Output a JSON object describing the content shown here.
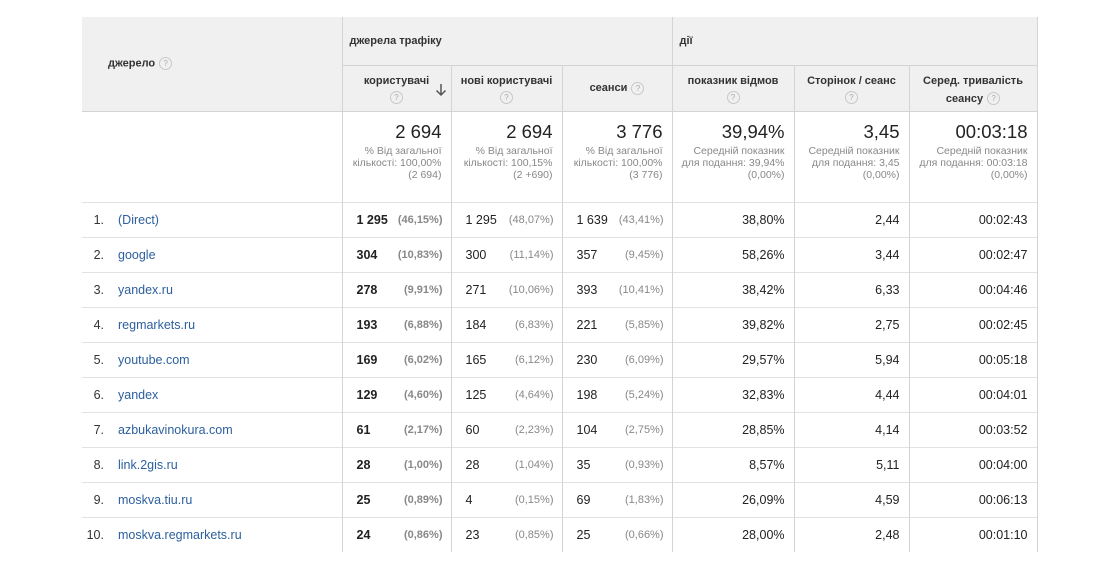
{
  "header": {
    "source_label": "джерело",
    "group_traffic": "джерела трафіку",
    "group_actions": "дії",
    "columns": {
      "users": "користувачі",
      "new_users": "нові користувачі",
      "sessions": "сеанси",
      "bounce_rate": "показник відмов",
      "pages_per_session": "Сторінок / сеанс",
      "avg_duration": "Серед. тривалість сеансу"
    },
    "help_glyph": "?"
  },
  "totals": {
    "users": {
      "value": "2 694",
      "sub": "% Від загальної кількості: 100,00% (2 694)"
    },
    "new_users": {
      "value": "2 694",
      "sub": "% Від загальної кількості: 100,15% (2 +690)"
    },
    "sessions": {
      "value": "3 776",
      "sub": "% Від загальної кількості: 100,00% (3 776)"
    },
    "bounce_rate": {
      "value": "39,94%",
      "sub": "Середній показник для подання: 39,94% (0,00%)"
    },
    "pages_per_session": {
      "value": "3,45",
      "sub": "Середній показник для подання: 3,45 (0,00%)"
    },
    "avg_duration": {
      "value": "00:03:18",
      "sub": "Середній показник для подання: 00:03:18 (0,00%)"
    }
  },
  "rows": [
    {
      "idx": "1.",
      "source": "(Direct)",
      "users": "1 295",
      "users_pct": "(46,15%)",
      "new_users": "1 295",
      "new_users_pct": "(48,07%)",
      "sessions": "1 639",
      "sessions_pct": "(43,41%)",
      "bounce": "38,80%",
      "pages": "2,44",
      "duration": "00:02:43"
    },
    {
      "idx": "2.",
      "source": "google",
      "users": "304",
      "users_pct": "(10,83%)",
      "new_users": "300",
      "new_users_pct": "(11,14%)",
      "sessions": "357",
      "sessions_pct": "(9,45%)",
      "bounce": "58,26%",
      "pages": "3,44",
      "duration": "00:02:47"
    },
    {
      "idx": "3.",
      "source": "yandex.ru",
      "users": "278",
      "users_pct": "(9,91%)",
      "new_users": "271",
      "new_users_pct": "(10,06%)",
      "sessions": "393",
      "sessions_pct": "(10,41%)",
      "bounce": "38,42%",
      "pages": "6,33",
      "duration": "00:04:46"
    },
    {
      "idx": "4.",
      "source": "regmarkets.ru",
      "users": "193",
      "users_pct": "(6,88%)",
      "new_users": "184",
      "new_users_pct": "(6,83%)",
      "sessions": "221",
      "sessions_pct": "(5,85%)",
      "bounce": "39,82%",
      "pages": "2,75",
      "duration": "00:02:45"
    },
    {
      "idx": "5.",
      "source": "youtube.com",
      "users": "169",
      "users_pct": "(6,02%)",
      "new_users": "165",
      "new_users_pct": "(6,12%)",
      "sessions": "230",
      "sessions_pct": "(6,09%)",
      "bounce": "29,57%",
      "pages": "5,94",
      "duration": "00:05:18"
    },
    {
      "idx": "6.",
      "source": "yandex",
      "users": "129",
      "users_pct": "(4,60%)",
      "new_users": "125",
      "new_users_pct": "(4,64%)",
      "sessions": "198",
      "sessions_pct": "(5,24%)",
      "bounce": "32,83%",
      "pages": "4,44",
      "duration": "00:04:01"
    },
    {
      "idx": "7.",
      "source": "azbukavinokura.com",
      "users": "61",
      "users_pct": "(2,17%)",
      "new_users": "60",
      "new_users_pct": "(2,23%)",
      "sessions": "104",
      "sessions_pct": "(2,75%)",
      "bounce": "28,85%",
      "pages": "4,14",
      "duration": "00:03:52"
    },
    {
      "idx": "8.",
      "source": "link.2gis.ru",
      "users": "28",
      "users_pct": "(1,00%)",
      "new_users": "28",
      "new_users_pct": "(1,04%)",
      "sessions": "35",
      "sessions_pct": "(0,93%)",
      "bounce": "8,57%",
      "pages": "5,11",
      "duration": "00:04:00"
    },
    {
      "idx": "9.",
      "source": "moskva.tiu.ru",
      "users": "25",
      "users_pct": "(0,89%)",
      "new_users": "4",
      "new_users_pct": "(0,15%)",
      "sessions": "69",
      "sessions_pct": "(1,83%)",
      "bounce": "26,09%",
      "pages": "4,59",
      "duration": "00:06:13"
    },
    {
      "idx": "10.",
      "source": "moskva.regmarkets.ru",
      "users": "24",
      "users_pct": "(0,86%)",
      "new_users": "23",
      "new_users_pct": "(0,85%)",
      "sessions": "25",
      "sessions_pct": "(0,66%)",
      "bounce": "28,00%",
      "pages": "2,48",
      "duration": "00:01:10"
    }
  ],
  "colors": {
    "link": "#2c5f9e",
    "header_bg": "#f0f0f0",
    "border": "#d4d4d4",
    "muted": "#888888"
  },
  "icons": {
    "help": "help-circle-icon",
    "sort": "arrow-down-icon"
  }
}
